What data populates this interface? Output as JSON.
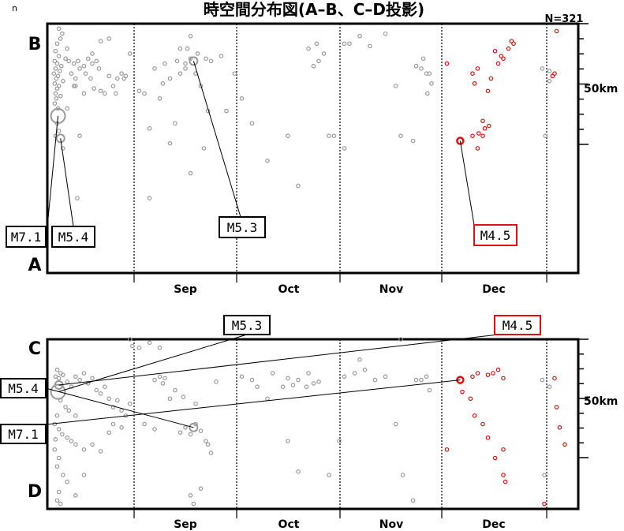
{
  "title": "時空間分布図(A–B、C–D投影)",
  "count_label": "N=321",
  "corner_label": "n",
  "months": [
    "Sep",
    "Oct",
    "Nov",
    "Dec"
  ],
  "scale_label": "50km",
  "colors": {
    "old": "#999999",
    "recent": "#e01010",
    "frame": "#000000"
  },
  "chart_data": [
    {
      "type": "scatter",
      "panel": "A-B",
      "top_label": "B",
      "bottom_label": "A",
      "x_axis": "time (months Aug–Jan)",
      "y_axis": "distance along A–B",
      "annotations": [
        {
          "label": "M7.1",
          "x": 0.09,
          "y": 0.35,
          "color": "black"
        },
        {
          "label": "M5.4",
          "x": 0.12,
          "y": 0.24,
          "color": "black"
        },
        {
          "label": "M5.3",
          "x": 1.58,
          "y": 0.44,
          "color": "black"
        },
        {
          "label": "M4.5",
          "x": 4.18,
          "y": 0.24,
          "color": "red"
        }
      ],
      "big_events": [
        {
          "x": 0.09,
          "y": 0.63,
          "size": 9,
          "color": "old"
        },
        {
          "x": 0.12,
          "y": 0.54,
          "size": 5,
          "color": "old"
        },
        {
          "x": 1.58,
          "y": 0.85,
          "size": 5,
          "color": "old"
        },
        {
          "x": 4.18,
          "y": 0.53,
          "size": 4,
          "color": "recent"
        }
      ],
      "points_old": [
        [
          0.1,
          0.98
        ],
        [
          0.14,
          0.96
        ],
        [
          0.08,
          0.92
        ],
        [
          0.2,
          0.9
        ],
        [
          0.12,
          0.94
        ],
        [
          0.06,
          0.89
        ],
        [
          0.18,
          0.86
        ],
        [
          0.1,
          0.87
        ],
        [
          0.05,
          0.85
        ],
        [
          0.08,
          0.84
        ],
        [
          0.13,
          0.83
        ],
        [
          0.06,
          0.82
        ],
        [
          0.11,
          0.81
        ],
        [
          0.04,
          0.8
        ],
        [
          0.09,
          0.79
        ],
        [
          0.07,
          0.78
        ],
        [
          0.15,
          0.77
        ],
        [
          0.05,
          0.76
        ],
        [
          0.1,
          0.75
        ],
        [
          0.08,
          0.74
        ],
        [
          0.06,
          0.72
        ],
        [
          0.12,
          0.71
        ],
        [
          0.07,
          0.7
        ],
        [
          0.05,
          0.68
        ],
        [
          0.09,
          0.66
        ],
        [
          0.08,
          0.6
        ],
        [
          0.1,
          0.57
        ],
        [
          0.06,
          0.55
        ],
        [
          0.22,
          0.85
        ],
        [
          0.28,
          0.84
        ],
        [
          0.33,
          0.85
        ],
        [
          0.35,
          0.82
        ],
        [
          0.4,
          0.83
        ],
        [
          0.45,
          0.86
        ],
        [
          0.5,
          0.84
        ],
        [
          0.55,
          0.85
        ],
        [
          0.58,
          0.82
        ],
        [
          0.25,
          0.8
        ],
        [
          0.3,
          0.78
        ],
        [
          0.42,
          0.8
        ],
        [
          0.48,
          0.78
        ],
        [
          0.52,
          0.74
        ],
        [
          0.6,
          0.73
        ],
        [
          0.65,
          0.72
        ],
        [
          0.7,
          0.79
        ],
        [
          0.75,
          0.75
        ],
        [
          0.78,
          0.72
        ],
        [
          0.85,
          0.8
        ],
        [
          0.88,
          0.78
        ],
        [
          0.95,
          0.88
        ],
        [
          0.9,
          0.79
        ],
        [
          0.6,
          0.93
        ],
        [
          0.7,
          0.94
        ],
        [
          0.3,
          0.75
        ],
        [
          0.4,
          0.72
        ],
        [
          0.2,
          0.66
        ],
        [
          0.15,
          0.5
        ],
        [
          0.32,
          0.3
        ],
        [
          0.5,
          0.88
        ],
        [
          0.8,
          0.78
        ],
        [
          0.35,
          0.55
        ],
        [
          0.28,
          0.75
        ],
        [
          1.05,
          0.73
        ],
        [
          1.1,
          0.72
        ],
        [
          1.2,
          0.82
        ],
        [
          1.3,
          0.84
        ],
        [
          1.28,
          0.76
        ],
        [
          1.35,
          0.78
        ],
        [
          1.45,
          0.8
        ],
        [
          1.42,
          0.85
        ],
        [
          1.5,
          0.82
        ],
        [
          1.55,
          0.86
        ],
        [
          1.62,
          0.88
        ],
        [
          1.7,
          0.86
        ],
        [
          1.75,
          0.85
        ],
        [
          1.52,
          0.9
        ],
        [
          1.6,
          0.8
        ],
        [
          1.25,
          0.7
        ],
        [
          1.15,
          0.58
        ],
        [
          1.35,
          0.52
        ],
        [
          1.55,
          0.95
        ],
        [
          1.5,
          0.84
        ],
        [
          1.65,
          0.75
        ],
        [
          1.72,
          0.65
        ],
        [
          1.4,
          0.6
        ],
        [
          1.45,
          0.9
        ],
        [
          1.68,
          0.5
        ],
        [
          1.55,
          0.4
        ],
        [
          1.85,
          0.87
        ],
        [
          1.9,
          0.65
        ],
        [
          1.98,
          0.8
        ],
        [
          2.05,
          0.7
        ],
        [
          2.15,
          0.6
        ],
        [
          2.3,
          0.45
        ],
        [
          2.5,
          0.55
        ],
        [
          2.6,
          0.35
        ],
        [
          2.7,
          0.9
        ],
        [
          2.75,
          0.83
        ],
        [
          2.8,
          0.85
        ],
        [
          2.85,
          0.88
        ],
        [
          2.78,
          0.92
        ],
        [
          2.9,
          0.55
        ],
        [
          2.95,
          0.55
        ],
        [
          1.15,
          0.3
        ],
        [
          3.05,
          0.92
        ],
        [
          3.1,
          0.92
        ],
        [
          3.2,
          0.95
        ],
        [
          3.3,
          0.91
        ],
        [
          3.45,
          0.96
        ],
        [
          3.55,
          0.75
        ],
        [
          3.6,
          0.55
        ],
        [
          3.05,
          0.5
        ],
        [
          3.75,
          0.83
        ],
        [
          3.8,
          0.82
        ],
        [
          3.85,
          0.8
        ],
        [
          3.82,
          0.86
        ],
        [
          3.9,
          0.76
        ],
        [
          3.88,
          0.8
        ],
        [
          3.86,
          0.72
        ],
        [
          3.72,
          0.53
        ],
        [
          4.98,
          0.82
        ],
        [
          5.05,
          0.81
        ],
        [
          5.05,
          0.77
        ],
        [
          5.01,
          0.55
        ]
      ],
      "points_recent": [
        [
          4.05,
          0.84
        ],
        [
          4.35,
          0.82
        ],
        [
          4.55,
          0.84
        ],
        [
          4.58,
          0.87
        ],
        [
          4.52,
          0.89
        ],
        [
          4.6,
          0.86
        ],
        [
          4.48,
          0.78
        ],
        [
          4.45,
          0.73
        ],
        [
          4.32,
          0.76
        ],
        [
          4.3,
          0.8
        ],
        [
          4.4,
          0.55
        ],
        [
          4.42,
          0.58
        ],
        [
          4.4,
          0.61
        ],
        [
          4.36,
          0.56
        ],
        [
          4.3,
          0.55
        ],
        [
          4.46,
          0.59
        ],
        [
          4.35,
          0.5
        ],
        [
          4.65,
          0.9
        ],
        [
          4.68,
          0.93
        ],
        [
          4.7,
          0.92
        ],
        [
          5.12,
          0.97
        ],
        [
          5.08,
          0.79
        ],
        [
          5.1,
          0.8
        ]
      ]
    },
    {
      "type": "scatter",
      "panel": "C-D",
      "top_label": "C",
      "bottom_label": "D",
      "x_axis": "time (months Aug–Jan)",
      "y_axis": "distance along C–D",
      "annotations": [
        {
          "label": "M5.3",
          "x": 1.58,
          "y": 1.08,
          "color": "black"
        },
        {
          "label": "M4.5",
          "x": 4.18,
          "y": 1.08,
          "color": "red"
        },
        {
          "label": "M5.4",
          "x": 0.09,
          "y": 0.78,
          "color": "black"
        },
        {
          "label": "M7.1",
          "x": 0.09,
          "y": 0.6,
          "color": "black"
        }
      ],
      "big_events": [
        {
          "x": 0.09,
          "y": 0.69,
          "size": 9,
          "color": "old"
        },
        {
          "x": 0.1,
          "y": 0.73,
          "size": 5,
          "color": "old"
        },
        {
          "x": 1.58,
          "y": 0.48,
          "size": 5,
          "color": "old"
        },
        {
          "x": 4.18,
          "y": 0.76,
          "size": 4,
          "color": "recent"
        }
      ],
      "points_old": [
        [
          0.08,
          0.82
        ],
        [
          0.12,
          0.8
        ],
        [
          0.06,
          0.78
        ],
        [
          0.1,
          0.77
        ],
        [
          0.15,
          0.79
        ],
        [
          0.2,
          0.75
        ],
        [
          0.25,
          0.72
        ],
        [
          0.3,
          0.78
        ],
        [
          0.35,
          0.76
        ],
        [
          0.4,
          0.8
        ],
        [
          0.45,
          0.74
        ],
        [
          0.5,
          0.77
        ],
        [
          0.55,
          0.7
        ],
        [
          0.6,
          0.68
        ],
        [
          0.65,
          0.72
        ],
        [
          0.7,
          0.65
        ],
        [
          0.75,
          0.6
        ],
        [
          0.8,
          0.64
        ],
        [
          0.85,
          0.58
        ],
        [
          0.9,
          0.55
        ],
        [
          0.95,
          0.62
        ],
        [
          0.12,
          0.64
        ],
        [
          0.18,
          0.6
        ],
        [
          0.22,
          0.58
        ],
        [
          0.3,
          0.55
        ],
        [
          0.08,
          0.55
        ],
        [
          0.05,
          0.5
        ],
        [
          0.1,
          0.47
        ],
        [
          0.14,
          0.44
        ],
        [
          0.06,
          0.41
        ],
        [
          0.2,
          0.42
        ],
        [
          0.25,
          0.4
        ],
        [
          0.3,
          0.38
        ],
        [
          0.4,
          0.35
        ],
        [
          0.5,
          0.38
        ],
        [
          0.6,
          0.34
        ],
        [
          0.05,
          0.35
        ],
        [
          0.1,
          0.3
        ],
        [
          0.08,
          0.25
        ],
        [
          0.15,
          0.2
        ],
        [
          0.2,
          0.16
        ],
        [
          0.1,
          0.1
        ],
        [
          0.08,
          0.05
        ],
        [
          0.12,
          0.03
        ],
        [
          0.3,
          0.08
        ],
        [
          0.4,
          0.2
        ],
        [
          0.7,
          0.45
        ],
        [
          0.75,
          0.5
        ],
        [
          0.85,
          0.48
        ],
        [
          0.95,
          1.0
        ],
        [
          0.98,
          0.96
        ],
        [
          1.05,
          0.95
        ],
        [
          1.1,
          0.5
        ],
        [
          1.2,
          0.76
        ],
        [
          1.25,
          0.78
        ],
        [
          1.28,
          0.74
        ],
        [
          1.3,
          0.77
        ],
        [
          1.35,
          0.65
        ],
        [
          1.4,
          0.7
        ],
        [
          1.45,
          0.45
        ],
        [
          1.5,
          0.48
        ],
        [
          1.55,
          0.44
        ],
        [
          1.6,
          0.5
        ],
        [
          1.65,
          0.46
        ],
        [
          1.7,
          0.4
        ],
        [
          1.72,
          0.38
        ],
        [
          1.75,
          0.33
        ],
        [
          1.8,
          0.75
        ],
        [
          1.48,
          0.66
        ],
        [
          1.6,
          0.62
        ],
        [
          1.55,
          0.08
        ],
        [
          1.58,
          0.03
        ],
        [
          1.25,
          0.95
        ],
        [
          1.15,
          0.98
        ],
        [
          1.65,
          0.12
        ],
        [
          1.2,
          0.47
        ],
        [
          2.05,
          0.78
        ],
        [
          2.15,
          0.76
        ],
        [
          2.2,
          0.72
        ],
        [
          2.35,
          0.8
        ],
        [
          2.45,
          0.72
        ],
        [
          2.5,
          0.77
        ],
        [
          2.55,
          0.73
        ],
        [
          2.6,
          0.76
        ],
        [
          2.7,
          0.8
        ],
        [
          2.68,
          0.72
        ],
        [
          2.75,
          0.74
        ],
        [
          2.8,
          0.75
        ],
        [
          2.3,
          0.65
        ],
        [
          2.5,
          0.4
        ],
        [
          2.6,
          0.22
        ],
        [
          2.9,
          0.2
        ],
        [
          3.05,
          0.78
        ],
        [
          3.15,
          0.8
        ],
        [
          3.25,
          0.82
        ],
        [
          3.35,
          0.76
        ],
        [
          3.45,
          0.78
        ],
        [
          3.55,
          0.5
        ],
        [
          3.0,
          0.4
        ],
        [
          3.2,
          0.88
        ],
        [
          3.6,
          1.0
        ],
        [
          3.62,
          0.2
        ],
        [
          3.72,
          0.05
        ],
        [
          3.75,
          0.76
        ],
        [
          3.8,
          0.76
        ],
        [
          3.85,
          0.78
        ],
        [
          3.88,
          0.7
        ],
        [
          4.98,
          0.76
        ],
        [
          5.05,
          0.72
        ],
        [
          5.0,
          0.2
        ]
      ],
      "points_recent": [
        [
          4.05,
          0.35
        ],
        [
          4.3,
          0.78
        ],
        [
          4.35,
          0.8
        ],
        [
          4.45,
          0.79
        ],
        [
          4.5,
          0.8
        ],
        [
          4.55,
          0.82
        ],
        [
          4.6,
          0.77
        ],
        [
          4.2,
          0.69
        ],
        [
          4.28,
          0.65
        ],
        [
          4.32,
          0.55
        ],
        [
          4.4,
          0.5
        ],
        [
          4.45,
          0.42
        ],
        [
          4.6,
          0.35
        ],
        [
          4.52,
          0.3
        ],
        [
          4.6,
          0.2
        ],
        [
          4.62,
          0.16
        ],
        [
          5.1,
          0.77
        ],
        [
          5.12,
          0.6
        ],
        [
          5.15,
          0.48
        ],
        [
          5.2,
          0.38
        ],
        [
          5.0,
          0.03
        ]
      ]
    }
  ]
}
